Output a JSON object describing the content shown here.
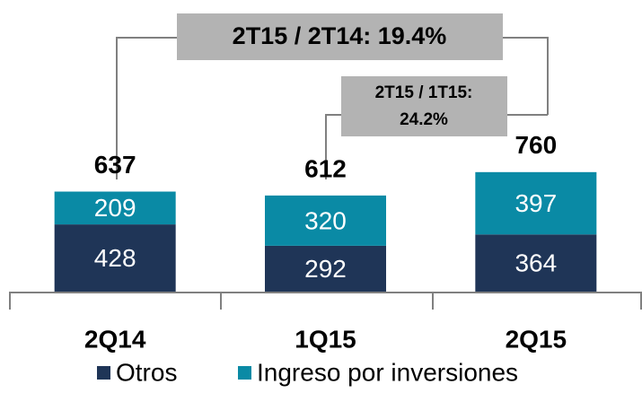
{
  "chart_data": {
    "type": "stacked_bar",
    "categories": [
      "2Q14",
      "1Q15",
      "2Q15"
    ],
    "series": [
      {
        "name": "Otros",
        "color": "#1f3557",
        "values": [
          428,
          292,
          364
        ]
      },
      {
        "name": "Ingreso por inversiones",
        "color": "#0a8aa5",
        "values": [
          209,
          320,
          397
        ]
      }
    ],
    "totals": [
      637,
      612,
      760
    ],
    "annotations": [
      "2T15 / 2T14: 19.4%",
      [
        "2T15 / 1T15:",
        "24.2%"
      ]
    ],
    "ylim": [
      0,
      1000
    ]
  }
}
